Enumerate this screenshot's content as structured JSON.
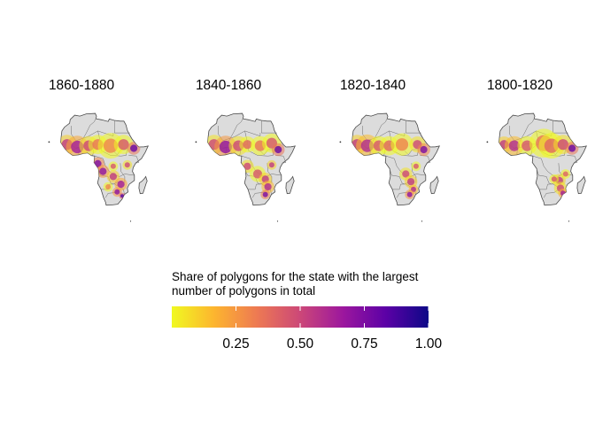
{
  "panels": [
    {
      "id": "p1860",
      "title": "1860-1880",
      "hotspots": [
        [
          -12,
          13,
          6,
          0.55
        ],
        [
          -4,
          11,
          7,
          0.65
        ],
        [
          5,
          12,
          6,
          0.5
        ],
        [
          12,
          13,
          6,
          0.35
        ],
        [
          22,
          12,
          8,
          0.3
        ],
        [
          32,
          13,
          6,
          0.45
        ],
        [
          40,
          10,
          4,
          0.8
        ],
        [
          12,
          -2,
          4,
          0.75
        ],
        [
          16,
          -8,
          4,
          0.7
        ],
        [
          24,
          -12,
          4,
          0.55
        ],
        [
          30,
          -18,
          4,
          0.65
        ],
        [
          27,
          -24,
          3,
          0.7
        ],
        [
          31,
          -27,
          2,
          0.85
        ],
        [
          24,
          -4,
          3,
          0.45
        ],
        [
          35,
          -3,
          3,
          0.5
        ],
        [
          20,
          -20,
          3,
          0.3
        ]
      ]
    },
    {
      "id": "p1840",
      "title": "1840-1860",
      "hotspots": [
        [
          -12,
          13,
          6,
          0.5
        ],
        [
          -3,
          11,
          7,
          0.7
        ],
        [
          7,
          12,
          6,
          0.5
        ],
        [
          14,
          13,
          5,
          0.4
        ],
        [
          24,
          12,
          6,
          0.35
        ],
        [
          33,
          14,
          6,
          0.45
        ],
        [
          38,
          9,
          4,
          0.8
        ],
        [
          14,
          -4,
          4,
          0.5
        ],
        [
          22,
          -10,
          5,
          0.45
        ],
        [
          28,
          -14,
          4,
          0.55
        ],
        [
          30,
          -20,
          4,
          0.6
        ],
        [
          28,
          -26,
          3,
          0.75
        ],
        [
          33,
          -3,
          3,
          0.55
        ]
      ]
    },
    {
      "id": "p1820",
      "title": "1820-1840",
      "hotspots": [
        [
          -13,
          13,
          6,
          0.55
        ],
        [
          -5,
          12,
          7,
          0.6
        ],
        [
          4,
          12,
          6,
          0.45
        ],
        [
          12,
          12,
          6,
          0.4
        ],
        [
          22,
          13,
          7,
          0.3
        ],
        [
          34,
          13,
          5,
          0.5
        ],
        [
          39,
          9,
          4,
          0.75
        ],
        [
          25,
          -10,
          4,
          0.5
        ],
        [
          29,
          -16,
          4,
          0.55
        ],
        [
          31,
          -22,
          3,
          0.6
        ],
        [
          28,
          -26,
          3,
          0.7
        ],
        [
          33,
          -4,
          3,
          0.45
        ]
      ]
    },
    {
      "id": "p1800",
      "title": "1800-1820",
      "hotspots": [
        [
          -13,
          13,
          5,
          0.55
        ],
        [
          -5,
          12,
          6,
          0.6
        ],
        [
          5,
          12,
          6,
          0.45
        ],
        [
          18,
          14,
          9,
          0.35
        ],
        [
          24,
          12,
          8,
          0.4
        ],
        [
          33,
          13,
          6,
          0.5
        ],
        [
          40,
          10,
          4,
          0.8
        ],
        [
          30,
          -15,
          4,
          0.55
        ],
        [
          31,
          -21,
          4,
          0.5
        ],
        [
          33,
          -25,
          3,
          0.65
        ],
        [
          26,
          -14,
          3,
          0.45
        ],
        [
          35,
          -10,
          3,
          0.4
        ]
      ]
    }
  ],
  "legend": {
    "title_line1": "Share of polygons for the state with the largest",
    "title_line2": "number of polygons in total",
    "colormap": "plasma (reversed)",
    "colors": [
      "#f0f921",
      "#fdb42f",
      "#ed7953",
      "#cc4778",
      "#9c179e",
      "#5c01a6",
      "#0d0887"
    ],
    "domain": [
      0,
      1
    ],
    "ticks": [
      {
        "label": "0.25",
        "value": 0.25
      },
      {
        "label": "0.50",
        "value": 0.5
      },
      {
        "label": "0.75",
        "value": 0.75
      },
      {
        "label": "1.00",
        "value": 1.0
      }
    ]
  }
}
